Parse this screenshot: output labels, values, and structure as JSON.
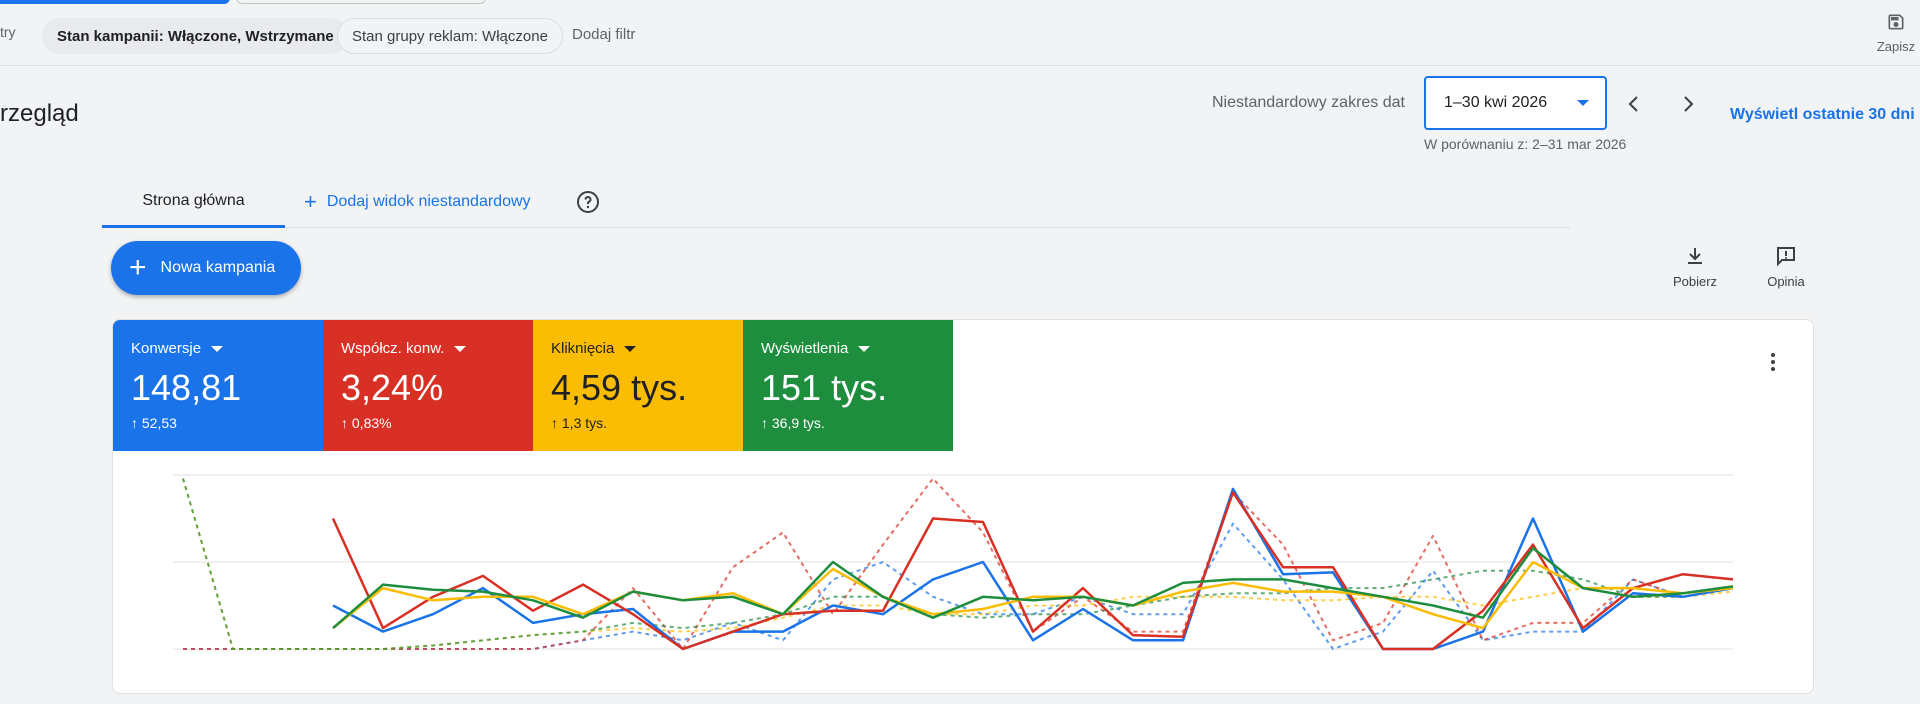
{
  "filters": {
    "label": "try",
    "chips": [
      "Stan kampanii: Włączone, Wstrzymane",
      "Stan grupy reklam: Włączone"
    ],
    "add_filter": "Dodaj filtr",
    "save_label": "Zapisz"
  },
  "header": {
    "title": "rzegląd",
    "date_range_label": "Niestandardowy zakres dat",
    "date_range_value": "1–30 kwi 2026",
    "compare_text": "W porównaniu z: 2–31 mar 2026",
    "last30_label": "Wyświetl ostatnie 30 dni"
  },
  "tabs": {
    "home": "Strona główna",
    "add_custom": "Dodaj widok niestandardowy"
  },
  "actions": {
    "new_campaign": "Nowa kampania",
    "download": "Pobierz",
    "feedback": "Opinia"
  },
  "metrics": [
    {
      "label": "Konwersje",
      "value": "148,81",
      "delta": "52,53",
      "color": "#1a73e8"
    },
    {
      "label": "Współcz. konw.",
      "value": "3,24%",
      "delta": "0,83%",
      "color": "#d93025"
    },
    {
      "label": "Kliknięcia",
      "value": "4,59 tys.",
      "delta": "1,3 tys.",
      "color": "#fbbc04"
    },
    {
      "label": "Wyświetlenia",
      "value": "151 tys.",
      "delta": "36,9 tys.",
      "color": "#1e8e3e"
    }
  ],
  "chart_data": {
    "type": "line",
    "ylim": [
      0,
      100
    ],
    "grid": true,
    "x": [
      1,
      2,
      3,
      4,
      5,
      6,
      7,
      8,
      9,
      10,
      11,
      12,
      13,
      14,
      15,
      16,
      17,
      18,
      19,
      20,
      21,
      22,
      23,
      24,
      25,
      26,
      27,
      28,
      29,
      30,
      31,
      32
    ],
    "series": [
      {
        "color": "#1a73e8",
        "dashed": false,
        "values": [
          null,
          null,
          null,
          25,
          10,
          20,
          35,
          15,
          20,
          23,
          0,
          10,
          10,
          25,
          20,
          40,
          50,
          5,
          23,
          5,
          5,
          92,
          43,
          44,
          0,
          0,
          10,
          75,
          10,
          32,
          30,
          35
        ]
      },
      {
        "color": "#d93025",
        "dashed": false,
        "values": [
          null,
          null,
          null,
          75,
          12,
          30,
          42,
          22,
          37,
          20,
          0,
          10,
          20,
          22,
          22,
          75,
          73,
          10,
          35,
          8,
          7,
          90,
          47,
          47,
          0,
          0,
          22,
          60,
          12,
          35,
          43,
          40
        ]
      },
      {
        "color": "#fbbc04",
        "dashed": false,
        "values": [
          null,
          null,
          null,
          12,
          35,
          28,
          30,
          30,
          20,
          33,
          28,
          32,
          20,
          46,
          30,
          20,
          23,
          30,
          30,
          25,
          33,
          38,
          33,
          33,
          30,
          20,
          12,
          50,
          35,
          35,
          32,
          35
        ]
      },
      {
        "color": "#1e8e3e",
        "dashed": false,
        "values": [
          null,
          null,
          null,
          12,
          37,
          34,
          33,
          28,
          18,
          33,
          28,
          30,
          20,
          50,
          30,
          18,
          30,
          28,
          30,
          25,
          38,
          40,
          40,
          35,
          30,
          25,
          18,
          58,
          35,
          30,
          32,
          36
        ]
      },
      {
        "color": "#1a73e8",
        "dashed": true,
        "values": [
          0,
          0,
          0,
          0,
          0,
          0,
          0,
          0,
          5,
          10,
          5,
          15,
          5,
          40,
          50,
          30,
          20,
          20,
          30,
          20,
          20,
          72,
          40,
          0,
          10,
          45,
          5,
          10,
          10,
          40,
          30,
          35
        ]
      },
      {
        "color": "#d93025",
        "dashed": true,
        "values": [
          0,
          0,
          0,
          0,
          0,
          0,
          0,
          0,
          5,
          35,
          0,
          47,
          67,
          20,
          60,
          98,
          67,
          10,
          30,
          10,
          10,
          90,
          60,
          5,
          15,
          65,
          5,
          15,
          15,
          40,
          30,
          35
        ]
      },
      {
        "color": "#fbbc04",
        "dashed": true,
        "values": [
          98,
          0,
          0,
          0,
          0,
          2,
          5,
          8,
          10,
          12,
          10,
          12,
          18,
          25,
          25,
          20,
          20,
          25,
          25,
          30,
          30,
          30,
          28,
          28,
          30,
          30,
          25,
          30,
          35,
          30,
          30,
          33
        ]
      },
      {
        "color": "#1e8e3e",
        "dashed": true,
        "values": [
          98,
          0,
          0,
          0,
          0,
          2,
          5,
          8,
          10,
          15,
          12,
          15,
          20,
          30,
          30,
          20,
          18,
          20,
          20,
          25,
          30,
          32,
          32,
          35,
          35,
          40,
          45,
          45,
          40,
          30,
          30,
          35
        ]
      }
    ]
  }
}
